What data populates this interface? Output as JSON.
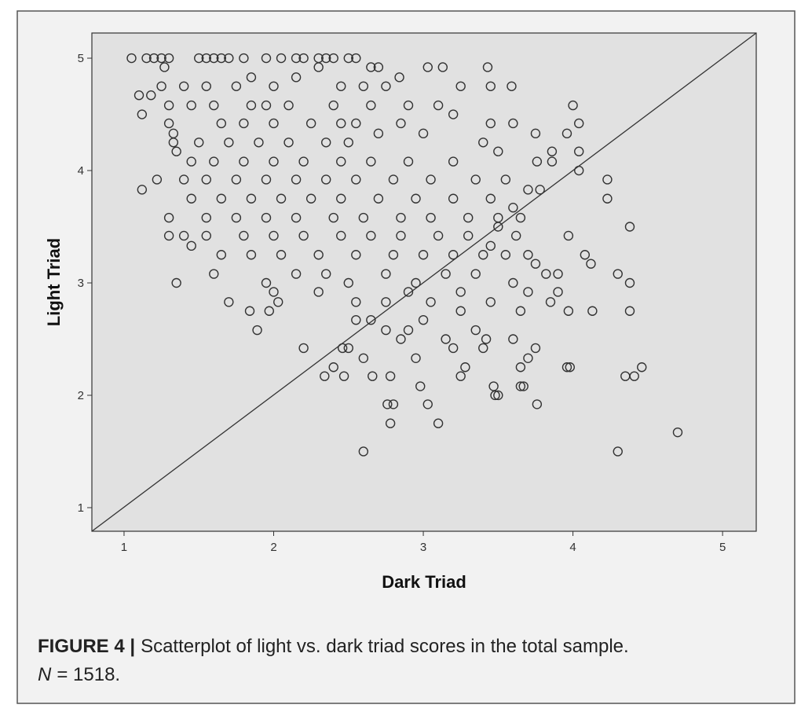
{
  "chart_data": {
    "type": "scatter",
    "xlabel": "Dark Triad",
    "ylabel": "Light Triad",
    "marker_color": "#333333",
    "xlim": [
      0.785,
      5.225
    ],
    "ylim": [
      0.79,
      5.224
    ],
    "xticks": [
      1,
      2,
      3,
      4,
      5
    ],
    "yticks": [
      1,
      2,
      3,
      4,
      5
    ],
    "x": [
      1.05,
      1.15,
      1.2,
      1.1,
      1.12,
      1.22,
      1.3,
      1.3,
      1.35,
      1.4,
      1.45,
      1.89,
      1.7,
      1.84,
      1.97,
      2.03,
      1.12,
      1.18,
      1.27,
      1.33,
      4.7,
      4.3,
      2.6,
      3.1,
      2.78,
      2.8,
      2.76,
      3.03,
      3.76,
      3.48,
      3.5,
      3.47,
      2.98,
      3.65,
      3.67,
      4.35,
      4.41,
      4.46,
      3.96,
      3.98,
      2.34,
      2.47,
      2.66,
      2.78,
      3.25,
      3.28,
      2.4,
      2.2,
      2.5,
      2.46,
      2.6,
      4.3,
      4.38,
      4.38,
      4.38,
      4.23,
      4.23,
      4.08,
      4.12,
      4.13,
      3.97,
      3.97,
      4.04,
      4.04,
      4.04,
      4,
      3.96,
      3.86,
      3.86,
      3.75,
      3.76,
      3.43,
      3.45,
      3.13,
      3.25,
      3.03,
      2.84,
      3.59,
      3.6,
      1.33,
      1.25,
      1.3,
      1.5,
      1.55,
      1.6,
      1.65,
      1.7,
      1.8,
      1.95,
      2.05,
      2.15,
      2.2,
      2.3,
      2.35,
      2.4,
      2.5,
      2.55,
      2.65,
      2.7,
      2.3,
      1.25,
      1.4,
      1.55,
      1.75,
      1.85,
      2.0,
      2.15,
      2.45,
      2.6,
      2.75,
      1.3,
      1.45,
      1.6,
      1.85,
      1.95,
      2.1,
      2.4,
      2.65,
      2.9,
      3.1,
      1.3,
      1.65,
      1.8,
      2.0,
      2.25,
      2.45,
      2.55,
      2.85,
      3.2,
      3.45,
      1.35,
      1.5,
      1.7,
      1.9,
      2.1,
      2.35,
      2.5,
      2.7,
      3.0,
      3.4,
      1.45,
      1.6,
      1.8,
      2.0,
      2.2,
      2.45,
      2.65,
      2.9,
      3.2,
      3.5,
      1.4,
      1.55,
      1.75,
      1.95,
      2.15,
      2.35,
      2.55,
      2.8,
      3.05,
      3.35,
      3.55,
      3.7,
      3.78,
      3.6,
      3.65,
      3.5,
      3.62,
      3.7,
      3.75,
      3.82,
      1.45,
      1.65,
      1.85,
      2.05,
      2.25,
      2.45,
      2.7,
      2.95,
      3.2,
      3.45,
      1.55,
      1.75,
      1.95,
      2.15,
      2.4,
      2.6,
      2.85,
      3.05,
      3.3,
      3.5,
      1.55,
      1.8,
      2.0,
      2.2,
      2.45,
      2.65,
      2.85,
      3.1,
      3.3,
      3.45,
      1.65,
      1.85,
      2.05,
      2.3,
      2.55,
      2.8,
      3.0,
      3.2,
      3.4,
      3.55,
      1.6,
      1.95,
      2.15,
      2.35,
      2.5,
      2.75,
      2.95,
      3.15,
      3.35,
      3.6,
      2.0,
      2.3,
      2.55,
      2.75,
      2.9,
      3.05,
      3.25,
      3.45,
      3.7,
      3.9,
      2.65,
      2.75,
      2.85,
      2.9,
      3.0,
      3.15,
      3.25,
      3.35,
      3.42,
      3.6,
      3.75,
      3.7,
      3.65,
      3.4,
      3.2,
      2.95,
      2.55,
      3.65,
      3.85,
      3.9
    ],
    "y": [
      5,
      5,
      5,
      4.67,
      3.83,
      3.92,
      3.58,
      3.42,
      3,
      3.42,
      3.33,
      2.58,
      2.83,
      2.75,
      2.75,
      2.83,
      4.5,
      4.67,
      4.92,
      4.25,
      1.67,
      1.5,
      1.5,
      1.75,
      1.75,
      1.92,
      1.92,
      1.92,
      1.92,
      2,
      2,
      2.08,
      2.08,
      2.08,
      2.08,
      2.17,
      2.17,
      2.25,
      2.25,
      2.25,
      2.17,
      2.17,
      2.17,
      2.17,
      2.17,
      2.25,
      2.25,
      2.42,
      2.42,
      2.42,
      2.33,
      3.08,
      3,
      2.75,
      3.5,
      3.92,
      3.75,
      3.25,
      3.17,
      2.75,
      2.75,
      3.42,
      4,
      4.17,
      4.42,
      4.58,
      4.33,
      4.17,
      4.08,
      4.33,
      4.08,
      4.92,
      4.75,
      4.92,
      4.75,
      4.92,
      4.83,
      4.75,
      4.42,
      4.33,
      5,
      5,
      5,
      5,
      5,
      5,
      5,
      5,
      5,
      5,
      5,
      5,
      5,
      5,
      5,
      5,
      5,
      4.92,
      4.92,
      4.92,
      4.75,
      4.75,
      4.75,
      4.75,
      4.83,
      4.75,
      4.83,
      4.75,
      4.75,
      4.75,
      4.58,
      4.58,
      4.58,
      4.58,
      4.58,
      4.58,
      4.58,
      4.58,
      4.58,
      4.58,
      4.42,
      4.42,
      4.42,
      4.42,
      4.42,
      4.42,
      4.42,
      4.42,
      4.5,
      4.42,
      4.17,
      4.25,
      4.25,
      4.25,
      4.25,
      4.25,
      4.25,
      4.33,
      4.33,
      4.25,
      4.08,
      4.08,
      4.08,
      4.08,
      4.08,
      4.08,
      4.08,
      4.08,
      4.08,
      4.17,
      3.92,
      3.92,
      3.92,
      3.92,
      3.92,
      3.92,
      3.92,
      3.92,
      3.92,
      3.92,
      3.92,
      3.83,
      3.83,
      3.67,
      3.58,
      3.5,
      3.42,
      3.25,
      3.17,
      3.08,
      3.75,
      3.75,
      3.75,
      3.75,
      3.75,
      3.75,
      3.75,
      3.75,
      3.75,
      3.75,
      3.58,
      3.58,
      3.58,
      3.58,
      3.58,
      3.58,
      3.58,
      3.58,
      3.58,
      3.58,
      3.42,
      3.42,
      3.42,
      3.42,
      3.42,
      3.42,
      3.42,
      3.42,
      3.42,
      3.33,
      3.25,
      3.25,
      3.25,
      3.25,
      3.25,
      3.25,
      3.25,
      3.25,
      3.25,
      3.25,
      3.08,
      3,
      3.08,
      3.08,
      3,
      3.08,
      3,
      3.08,
      3.08,
      3,
      2.92,
      2.92,
      2.83,
      2.83,
      2.92,
      2.83,
      2.92,
      2.83,
      2.92,
      2.92,
      2.67,
      2.58,
      2.5,
      2.58,
      2.67,
      2.5,
      2.75,
      2.58,
      2.5,
      2.5,
      2.42,
      2.33,
      2.25,
      2.42,
      2.42,
      2.33,
      2.67,
      2.75,
      2.83,
      3.08
    ]
  },
  "caption": {
    "label": "FIGURE 4 |",
    "text": "Scatterplot of light vs. dark triad scores in the total sample.",
    "n_symbol": "N",
    "n_text": "= 1518."
  }
}
